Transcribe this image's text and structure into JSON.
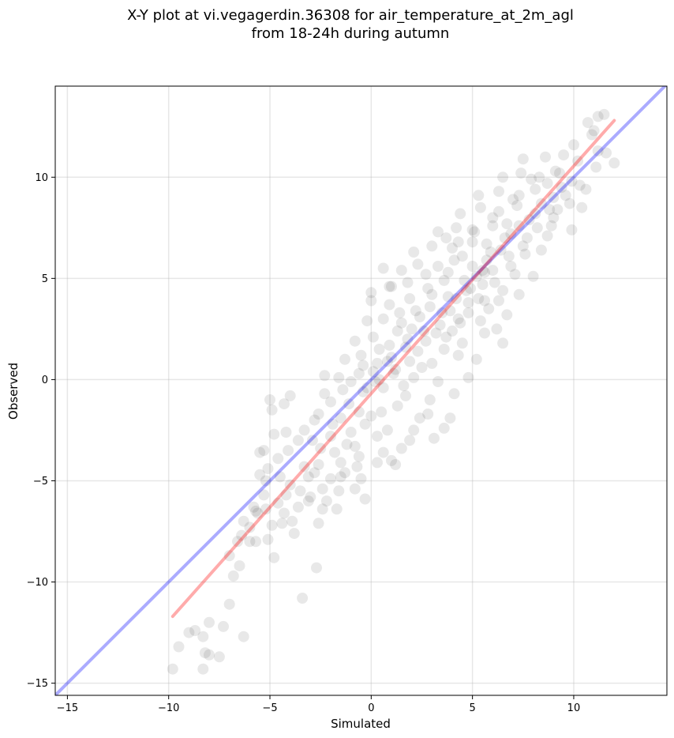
{
  "chart_data": {
    "type": "scatter",
    "title_line1": "X-Y plot at vi.vegagerdin.36308 for air_temperature_at_2m_agl",
    "title_line2": "from 18-24h during autumn",
    "xlabel": "Simulated",
    "ylabel": "Observed",
    "xlim": [
      -15.6,
      14.6
    ],
    "ylim": [
      -15.6,
      14.5
    ],
    "xticks": [
      -15,
      -10,
      -5,
      0,
      5,
      10
    ],
    "yticks": [
      -15,
      -10,
      -5,
      0,
      5,
      10
    ],
    "xtick_labels": [
      "−15",
      "−10",
      "−5",
      "0",
      "5",
      "10"
    ],
    "ytick_labels": [
      "−15",
      "−10",
      "−5",
      "0",
      "5",
      "10"
    ],
    "grid": true,
    "point_color": "#000000",
    "point_opacity": 0.09,
    "identity_line": {
      "x": [
        -15.6,
        14.6
      ],
      "y": [
        -15.6,
        14.6
      ],
      "color": "#0000ff"
    },
    "fit_line": {
      "x": [
        -9.8,
        12.0
      ],
      "y": [
        -11.7,
        12.8
      ],
      "color": "#ff0000"
    },
    "points": [
      [
        -9.8,
        -14.3
      ],
      [
        -8.3,
        -14.3
      ],
      [
        -9.5,
        -13.2
      ],
      [
        -8.2,
        -13.5
      ],
      [
        -8.0,
        -13.6
      ],
      [
        -7.5,
        -13.7
      ],
      [
        -8.3,
        -12.7
      ],
      [
        -9.0,
        -12.5
      ],
      [
        -8.7,
        -12.4
      ],
      [
        -8.0,
        -12.0
      ],
      [
        -7.3,
        -12.2
      ],
      [
        -6.3,
        -12.7
      ],
      [
        -7.0,
        -11.1
      ],
      [
        -3.4,
        -10.8
      ],
      [
        -6.5,
        -9.2
      ],
      [
        -2.7,
        -9.3
      ],
      [
        -6.8,
        -9.7
      ],
      [
        -4.8,
        -8.8
      ],
      [
        -7.0,
        -8.7
      ],
      [
        -6.6,
        -8.0
      ],
      [
        -6.0,
        -8.0
      ],
      [
        -5.1,
        -7.9
      ],
      [
        -3.8,
        -7.6
      ],
      [
        -6.4,
        -7.7
      ],
      [
        -4.4,
        -7.1
      ],
      [
        -3.9,
        -7.0
      ],
      [
        -2.6,
        -7.1
      ],
      [
        -6.3,
        -7.0
      ],
      [
        -5.6,
        -6.6
      ],
      [
        -5.2,
        -6.4
      ],
      [
        -4.6,
        -6.1
      ],
      [
        -3.6,
        -6.3
      ],
      [
        -2.4,
        -6.4
      ],
      [
        -1.7,
        -6.4
      ],
      [
        -2.2,
        -6.0
      ],
      [
        -0.3,
        -5.9
      ],
      [
        -5.3,
        -5.7
      ],
      [
        -4.2,
        -5.7
      ],
      [
        -3.5,
        -5.5
      ],
      [
        -2.4,
        -5.4
      ],
      [
        -1.6,
        -5.5
      ],
      [
        -0.8,
        -5.4
      ],
      [
        -5.2,
        -5.0
      ],
      [
        -4.5,
        -4.8
      ],
      [
        -3.1,
        -4.8
      ],
      [
        -2.0,
        -4.9
      ],
      [
        -1.3,
        -4.6
      ],
      [
        -0.5,
        -4.9
      ],
      [
        -5.5,
        -4.7
      ],
      [
        -5.1,
        -4.4
      ],
      [
        -2.6,
        -4.2
      ],
      [
        -1.5,
        -4.1
      ],
      [
        -0.7,
        -4.3
      ],
      [
        0.3,
        -4.1
      ],
      [
        1.0,
        -4.0
      ],
      [
        1.2,
        -4.2
      ],
      [
        -5.3,
        -3.5
      ],
      [
        -5.5,
        -3.6
      ],
      [
        -4.1,
        -3.5
      ],
      [
        -2.5,
        -3.4
      ],
      [
        -1.8,
        -3.6
      ],
      [
        -0.8,
        -3.3
      ],
      [
        0.6,
        -3.6
      ],
      [
        1.5,
        -3.4
      ],
      [
        -4.8,
        -2.7
      ],
      [
        -4.2,
        -2.6
      ],
      [
        -3.3,
        -2.5
      ],
      [
        -2.0,
        -2.8
      ],
      [
        -1.0,
        -2.6
      ],
      [
        -0.3,
        -2.2
      ],
      [
        0.8,
        -2.5
      ],
      [
        2.1,
        -2.5
      ],
      [
        3.1,
        -2.9
      ],
      [
        3.6,
        -2.4
      ],
      [
        -4.9,
        -1.5
      ],
      [
        -4.3,
        -1.2
      ],
      [
        -2.6,
        -1.7
      ],
      [
        -1.5,
        -1.9
      ],
      [
        -0.6,
        -1.6
      ],
      [
        0.5,
        -1.6
      ],
      [
        1.3,
        -1.3
      ],
      [
        2.8,
        -1.7
      ],
      [
        3.9,
        -1.9
      ],
      [
        -5.0,
        -1.0
      ],
      [
        -4.0,
        -0.8
      ],
      [
        -2.3,
        -0.7
      ],
      [
        -1.4,
        -0.5
      ],
      [
        -0.4,
        -0.6
      ],
      [
        0.6,
        -0.4
      ],
      [
        1.7,
        -0.8
      ],
      [
        2.9,
        -1.0
      ],
      [
        4.1,
        -0.7
      ],
      [
        -2.3,
        0.2
      ],
      [
        -1.6,
        0.1
      ],
      [
        -0.6,
        0.3
      ],
      [
        0.2,
        -0.1
      ],
      [
        1.1,
        0.3
      ],
      [
        2.1,
        0.1
      ],
      [
        3.3,
        -0.1
      ],
      [
        4.8,
        0.1
      ],
      [
        -1.3,
        1.0
      ],
      [
        -0.5,
        1.2
      ],
      [
        0.3,
        0.8
      ],
      [
        1.0,
        1.1
      ],
      [
        1.9,
        0.9
      ],
      [
        3.0,
        0.8
      ],
      [
        4.3,
        1.2
      ],
      [
        5.2,
        1.0
      ],
      [
        -0.8,
        1.9
      ],
      [
        0.1,
        2.1
      ],
      [
        0.9,
        1.7
      ],
      [
        1.8,
        2.0
      ],
      [
        2.7,
        1.9
      ],
      [
        3.7,
        2.1
      ],
      [
        4.5,
        1.8
      ],
      [
        5.6,
        2.3
      ],
      [
        6.5,
        1.8
      ],
      [
        -0.2,
        2.9
      ],
      [
        0.6,
        3.0
      ],
      [
        1.5,
        2.8
      ],
      [
        2.4,
        3.1
      ],
      [
        3.4,
        2.7
      ],
      [
        4.3,
        3.0
      ],
      [
        5.4,
        2.9
      ],
      [
        6.2,
        2.5
      ],
      [
        0.0,
        3.9
      ],
      [
        0.9,
        3.7
      ],
      [
        1.9,
        4.0
      ],
      [
        2.9,
        3.6
      ],
      [
        3.8,
        4.1
      ],
      [
        4.8,
        3.8
      ],
      [
        5.8,
        3.5
      ],
      [
        6.7,
        3.2
      ],
      [
        0.0,
        4.3
      ],
      [
        0.9,
        4.6
      ],
      [
        1.8,
        4.8
      ],
      [
        2.8,
        4.5
      ],
      [
        3.6,
        4.9
      ],
      [
        4.7,
        4.4
      ],
      [
        5.5,
        4.7
      ],
      [
        6.5,
        4.4
      ],
      [
        7.3,
        4.2
      ],
      [
        1.5,
        5.4
      ],
      [
        2.3,
        5.7
      ],
      [
        3.3,
        5.6
      ],
      [
        4.1,
        5.9
      ],
      [
        5.0,
        5.6
      ],
      [
        6.0,
        5.4
      ],
      [
        7.1,
        5.2
      ],
      [
        8.0,
        5.1
      ],
      [
        2.1,
        6.3
      ],
      [
        3.0,
        6.6
      ],
      [
        4.0,
        6.5
      ],
      [
        5.0,
        6.8
      ],
      [
        5.9,
        6.3
      ],
      [
        6.8,
        6.1
      ],
      [
        7.6,
        6.2
      ],
      [
        8.4,
        6.4
      ],
      [
        3.3,
        7.3
      ],
      [
        4.2,
        7.5
      ],
      [
        5.1,
        7.3
      ],
      [
        6.0,
        7.6
      ],
      [
        6.9,
        7.2
      ],
      [
        7.7,
        7.0
      ],
      [
        8.7,
        7.1
      ],
      [
        4.4,
        8.2
      ],
      [
        5.4,
        8.5
      ],
      [
        6.3,
        8.3
      ],
      [
        7.2,
        8.6
      ],
      [
        8.1,
        8.2
      ],
      [
        9.0,
        8.0
      ],
      [
        9.9,
        7.4
      ],
      [
        5.3,
        9.1
      ],
      [
        6.3,
        9.3
      ],
      [
        7.3,
        9.1
      ],
      [
        8.1,
        9.4
      ],
      [
        9.0,
        9.0
      ],
      [
        9.8,
        8.7
      ],
      [
        10.4,
        8.5
      ],
      [
        6.5,
        10.0
      ],
      [
        7.4,
        10.2
      ],
      [
        8.3,
        10.0
      ],
      [
        9.1,
        10.3
      ],
      [
        9.9,
        9.8
      ],
      [
        10.6,
        9.4
      ],
      [
        7.5,
        10.9
      ],
      [
        8.6,
        11.0
      ],
      [
        9.5,
        11.1
      ],
      [
        10.2,
        10.8
      ],
      [
        11.1,
        10.5
      ],
      [
        12.0,
        10.7
      ],
      [
        10.0,
        11.6
      ],
      [
        10.9,
        12.1
      ],
      [
        11.2,
        11.3
      ],
      [
        11.6,
        11.2
      ],
      [
        10.7,
        12.7
      ],
      [
        11.2,
        13.0
      ],
      [
        11.5,
        13.1
      ],
      [
        11.0,
        12.3
      ],
      [
        0.1,
        0.4
      ],
      [
        1.2,
        0.5
      ],
      [
        2.3,
        1.4
      ],
      [
        3.2,
        2.3
      ],
      [
        4.6,
        4.9
      ],
      [
        5.2,
        5.1
      ],
      [
        5.7,
        5.9
      ],
      [
        6.6,
        7.0
      ],
      [
        7.8,
        7.9
      ],
      [
        8.4,
        8.7
      ],
      [
        8.8,
        8.4
      ],
      [
        9.4,
        9.5
      ],
      [
        5.5,
        5.4
      ],
      [
        5.6,
        5.3
      ],
      [
        4.9,
        4.5
      ],
      [
        4.2,
        4.0
      ],
      [
        3.5,
        3.3
      ],
      [
        2.6,
        2.4
      ],
      [
        1.7,
        1.6
      ],
      [
        0.8,
        0.9
      ],
      [
        0.4,
        0.0
      ],
      [
        -0.2,
        -0.4
      ],
      [
        -1.1,
        -1.2
      ],
      [
        -1.9,
        -2.2
      ],
      [
        -2.9,
        -3.0
      ],
      [
        -3.3,
        -4.3
      ],
      [
        -4.0,
        -5.2
      ],
      [
        -3.0,
        -5.8
      ],
      [
        -1.2,
        -3.2
      ],
      [
        0.0,
        -1.8
      ],
      [
        1.6,
        -0.3
      ],
      [
        2.5,
        0.6
      ],
      [
        3.6,
        1.5
      ],
      [
        4.0,
        2.4
      ],
      [
        4.8,
        3.3
      ],
      [
        5.3,
        4.0
      ],
      [
        6.1,
        4.8
      ],
      [
        6.9,
        5.6
      ],
      [
        7.5,
        6.6
      ],
      [
        8.2,
        7.5
      ],
      [
        8.9,
        7.6
      ],
      [
        9.2,
        8.4
      ],
      [
        9.6,
        9.1
      ],
      [
        10.3,
        9.6
      ],
      [
        7.0,
        8.9
      ],
      [
        6.0,
        8.0
      ],
      [
        5.0,
        7.4
      ],
      [
        4.5,
        6.1
      ],
      [
        3.8,
        5.3
      ],
      [
        3.0,
        4.2
      ],
      [
        2.2,
        3.4
      ],
      [
        1.3,
        2.4
      ],
      [
        0.4,
        1.5
      ],
      [
        -0.4,
        0.7
      ],
      [
        -1.0,
        -0.1
      ],
      [
        -2.0,
        -1.1
      ],
      [
        -2.8,
        -2.0
      ],
      [
        -3.6,
        -3.0
      ],
      [
        -4.6,
        -3.9
      ],
      [
        -5.7,
        -6.5
      ],
      [
        -6.0,
        -7.3
      ],
      [
        -5.8,
        -6.3
      ],
      [
        7.9,
        9.9
      ],
      [
        8.7,
        9.7
      ],
      [
        9.3,
        10.2
      ],
      [
        6.7,
        7.7
      ],
      [
        7.3,
        7.6
      ],
      [
        4.3,
        6.8
      ],
      [
        3.7,
        7.0
      ],
      [
        5.7,
        6.7
      ],
      [
        6.4,
        6.4
      ],
      [
        1.0,
        4.6
      ],
      [
        0.6,
        5.5
      ],
      [
        2.7,
        5.2
      ],
      [
        1.4,
        3.3
      ],
      [
        2.0,
        2.5
      ],
      [
        3.9,
        3.4
      ],
      [
        4.4,
        2.8
      ],
      [
        5.6,
        3.9
      ],
      [
        6.3,
        3.9
      ],
      [
        0.3,
        -2.8
      ],
      [
        1.9,
        -3.0
      ],
      [
        2.4,
        -1.9
      ],
      [
        -0.6,
        -3.8
      ],
      [
        -1.5,
        -4.8
      ],
      [
        -2.8,
        -4.6
      ],
      [
        -3.1,
        -6.0
      ],
      [
        -4.3,
        -6.6
      ],
      [
        -5.7,
        -8.0
      ],
      [
        -4.9,
        -7.2
      ]
    ]
  }
}
